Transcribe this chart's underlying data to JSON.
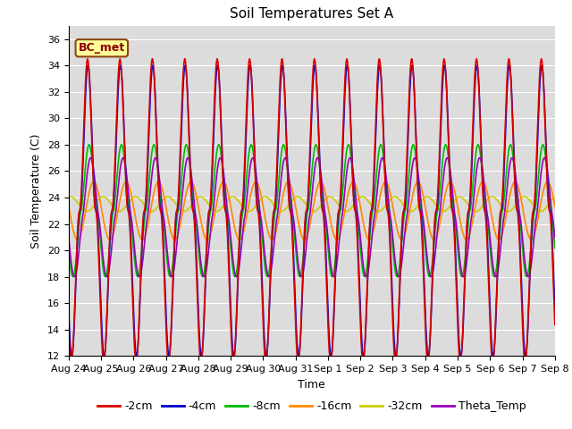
{
  "title": "Soil Temperatures Set A",
  "xlabel": "Time",
  "ylabel": "Soil Temperature (C)",
  "ylim": [
    12,
    37
  ],
  "yticks": [
    12,
    14,
    16,
    18,
    20,
    22,
    24,
    26,
    28,
    30,
    32,
    34,
    36
  ],
  "annotation": "BC_met",
  "bg_color": "#dcdcdc",
  "legend_entries": [
    "-2cm",
    "-4cm",
    "-8cm",
    "-16cm",
    "-32cm",
    "Theta_Temp"
  ],
  "legend_colors": [
    "#dd0000",
    "#0000cc",
    "#00bb00",
    "#ff8800",
    "#cccc00",
    "#9900bb"
  ],
  "line_width": 1.2,
  "base_2cm": 23.0,
  "amp_2cm": 11.5,
  "base_4cm": 23.0,
  "amp_4cm": 11.0,
  "base_8cm": 23.0,
  "amp_8cm": 5.0,
  "base_16cm": 23.0,
  "amp_16cm": 2.2,
  "base_32cm": 23.5,
  "amp_32cm": 0.55,
  "base_theta": 22.5,
  "amp_theta": 4.5
}
